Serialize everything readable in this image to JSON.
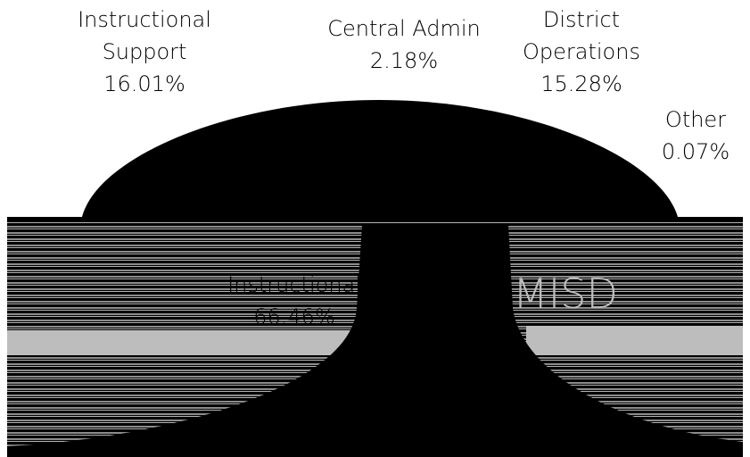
{
  "chart_data": {
    "type": "pie",
    "variant": "3d-donut",
    "center_label": "MISD",
    "slices": [
      {
        "label": "Instructional",
        "value": 66.46,
        "display": "66.46%",
        "color": "#000000"
      },
      {
        "label": "Instructional Support",
        "value": 16.01,
        "display": "16.01%",
        "color": "#000000"
      },
      {
        "label": "Central Admin",
        "value": 2.18,
        "display": "2.18%",
        "color": "#000000"
      },
      {
        "label": "District Operations",
        "value": 15.28,
        "display": "15.28%",
        "color": "#000000"
      },
      {
        "label": "Other",
        "value": 0.07,
        "display": "0.07%",
        "color": "#000000"
      }
    ],
    "label_lines": {
      "Instructional": [
        "Instructional",
        "66.46%"
      ],
      "Instructional Support": [
        "Instructional",
        "Support",
        "16.01%"
      ],
      "Central Admin": [
        "Central Admin",
        "2.18%"
      ],
      "District Operations": [
        "District",
        "Operations",
        "15.28%"
      ],
      "Other": [
        "Other",
        "0.07%"
      ]
    },
    "legend": "none"
  }
}
